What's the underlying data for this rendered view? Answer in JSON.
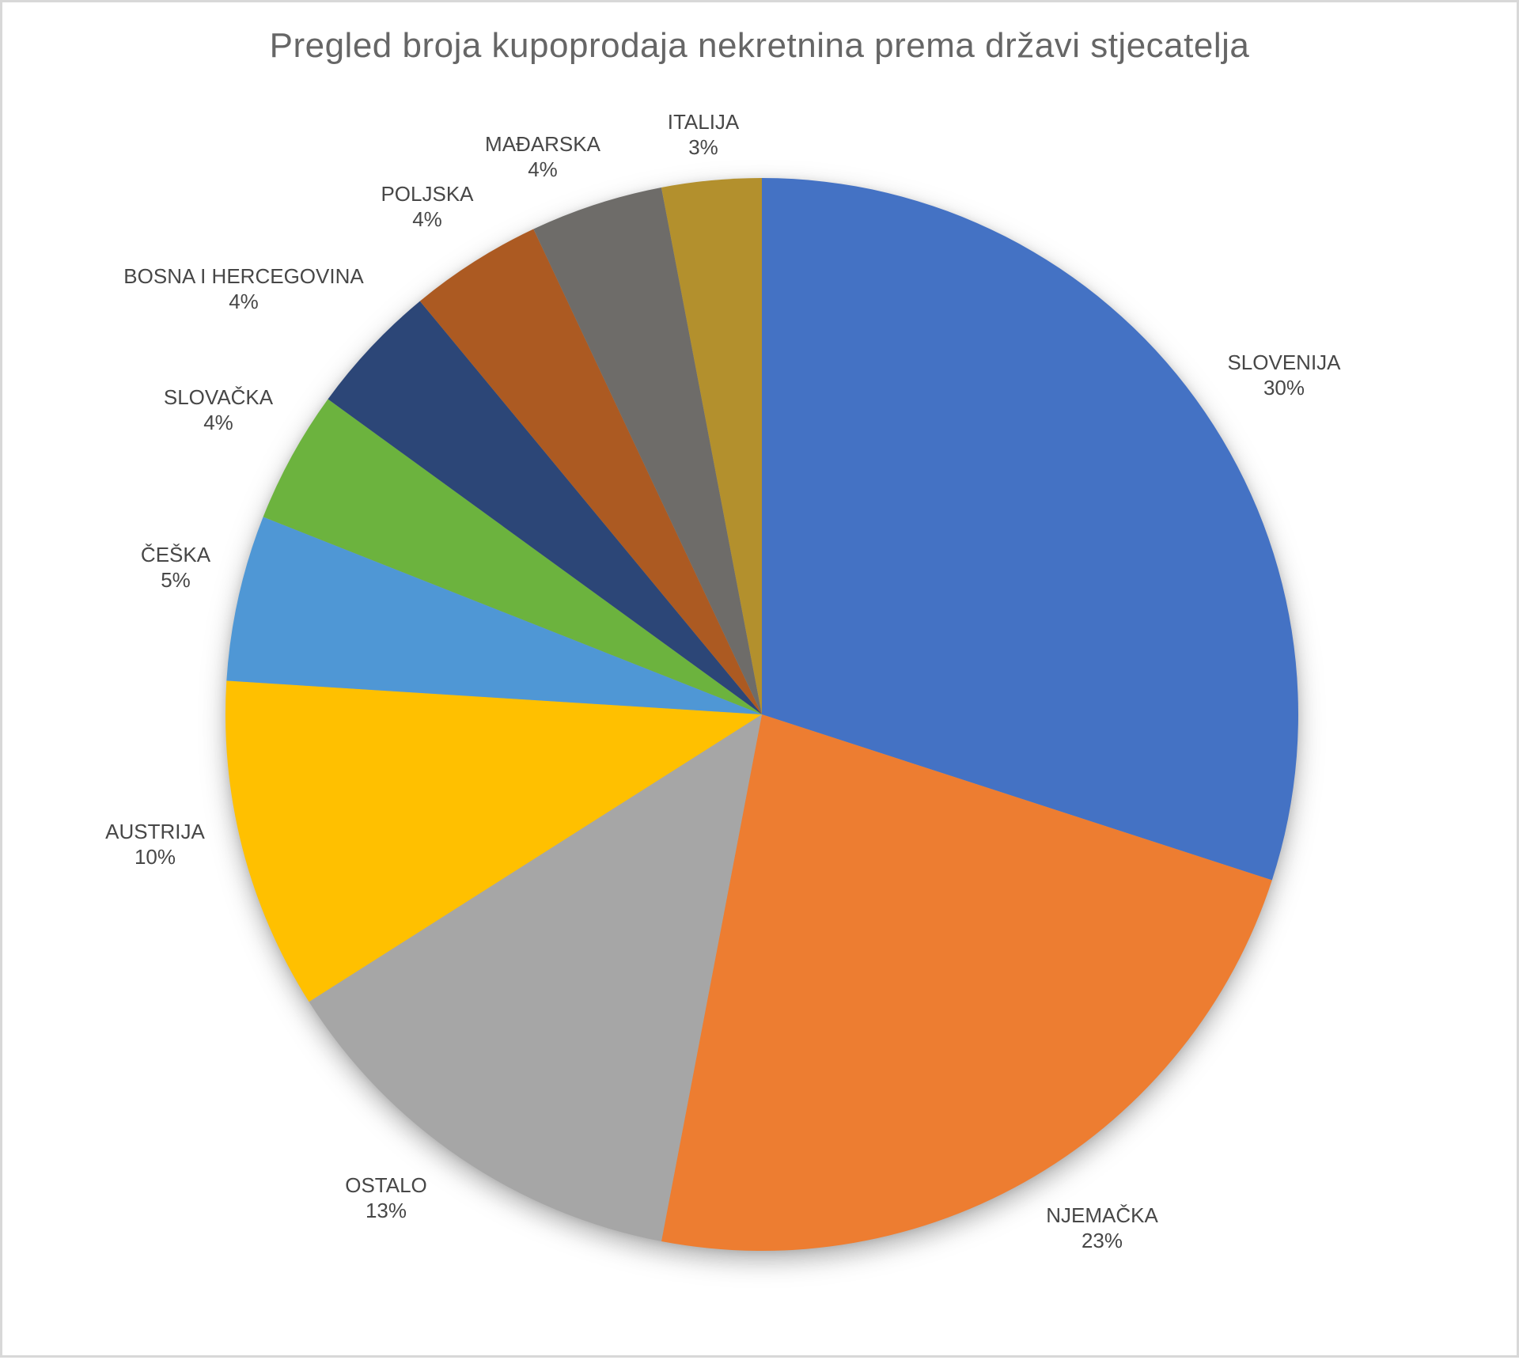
{
  "page": {
    "background": "#ffffff",
    "frame_border_color": "#d8d8d8"
  },
  "chart_data": {
    "type": "pie",
    "title": "Pregled broja kupoprodaja nekretnina prema državi stjecatelja",
    "categories": [
      "SLOVENIJA",
      "NJEMAČKA",
      "OSTALO",
      "AUSTRIJA",
      "ČEŠKA",
      "SLOVAČKA",
      "BOSNA I HERCEGOVINA",
      "POLJSKA",
      "MAĐARSKA",
      "ITALIJA"
    ],
    "values": [
      30,
      23,
      13,
      10,
      5,
      4,
      4,
      4,
      4,
      3
    ],
    "unit": "%",
    "colors": [
      "#4472c4",
      "#ed7d31",
      "#a6a6a6",
      "#ffc000",
      "#4f97d5",
      "#6cb33e",
      "#2c4677",
      "#ac5a22",
      "#6e6c69",
      "#b3902d"
    ],
    "start_angle_deg": 0,
    "direction": "clockwise",
    "legend": "none",
    "label_style": "category-name-and-percent-outside",
    "title_color": "#666666",
    "label_color": "#474747"
  }
}
